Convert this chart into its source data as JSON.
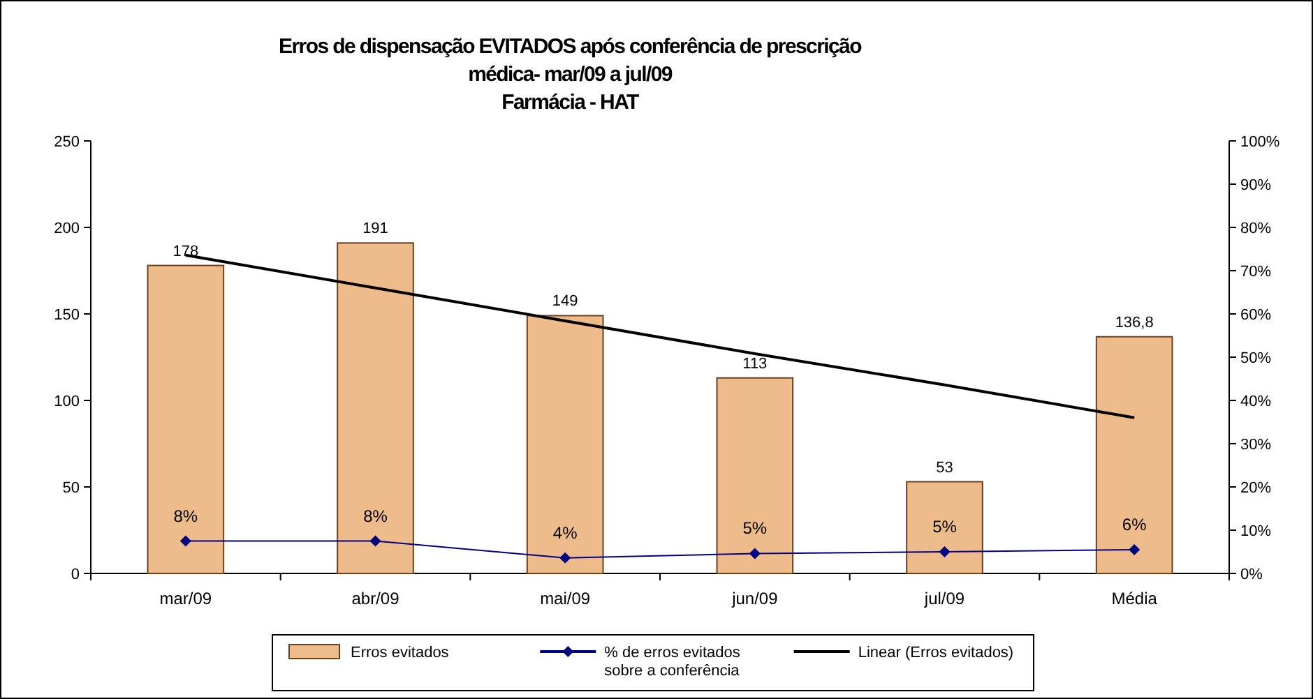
{
  "chart_data": {
    "type": "bar",
    "title": "Erros de dispensação EVITADOS após conferência de prescrição\nmédica-   mar/09 a jul/09\nFarmácia - HAT",
    "categories": [
      "mar/09",
      "abr/09",
      "mai/09",
      "jun/09",
      "jul/09",
      "Média"
    ],
    "series": [
      {
        "name": "Erros evitados",
        "color": "#eebb8a",
        "values": [
          178,
          191,
          149,
          113,
          53,
          136.8
        ],
        "value_labels": [
          "178",
          "191",
          "149",
          "113",
          "53",
          "136,8"
        ]
      },
      {
        "name": "% de erros evitados sobre a conferência",
        "type": "line",
        "axis": "y2",
        "color": "#000080",
        "marker": "diamond",
        "values": [
          7.5,
          7.5,
          3.6,
          4.6,
          5.0,
          5.5
        ],
        "value_labels": [
          "8%",
          "8%",
          "4%",
          "5%",
          "5%",
          "6%"
        ]
      },
      {
        "name": "Linear (Erros evitados)",
        "type": "line",
        "color": "#000000",
        "marker": "none",
        "values": [
          184,
          165,
          146,
          127,
          109,
          90
        ]
      }
    ],
    "ylim": [
      0,
      250
    ],
    "yticks": [
      0,
      50,
      100,
      150,
      200,
      250
    ],
    "y2lim": [
      0,
      100
    ],
    "y2ticks": [
      {
        "value": 0,
        "label": "0%"
      },
      {
        "value": 10,
        "label": "10%"
      },
      {
        "value": 20,
        "label": "20%"
      },
      {
        "value": 30,
        "label": "30%"
      },
      {
        "value": 40,
        "label": "40%"
      },
      {
        "value": 50,
        "label": "50%"
      },
      {
        "value": 60,
        "label": "60%"
      },
      {
        "value": 70,
        "label": "70%"
      },
      {
        "value": 80,
        "label": "80%"
      },
      {
        "value": 90,
        "label": "90%"
      },
      {
        "value": 100,
        "label": "100%"
      }
    ],
    "grid": false,
    "legend": "bottom"
  }
}
